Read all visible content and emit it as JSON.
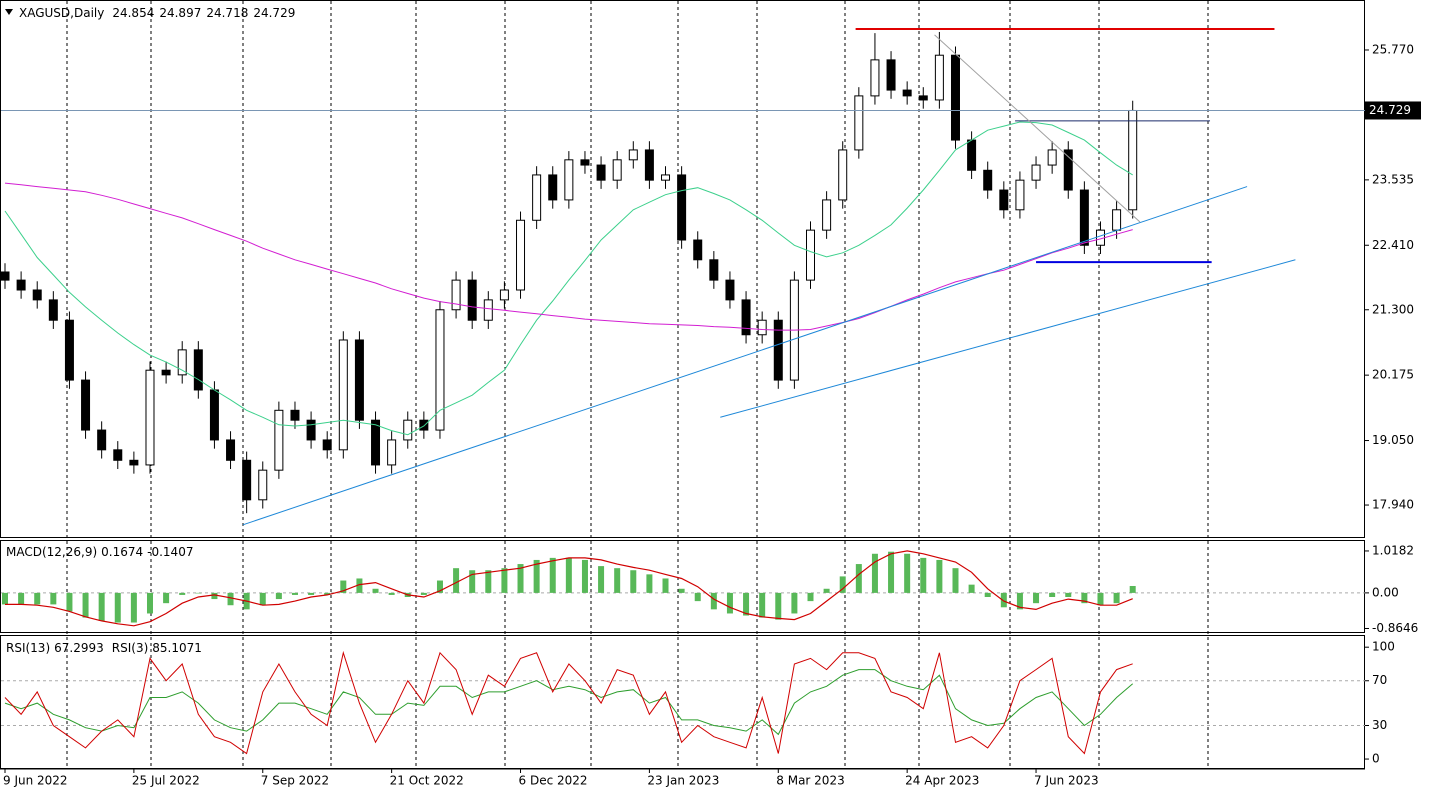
{
  "chart_data": [
    {
      "type": "candlestick",
      "title": "XAGUSD,Daily",
      "header_values": [
        24.854,
        24.897,
        24.718,
        24.729
      ],
      "categories": [
        "9 Jun 2022",
        null,
        null,
        null,
        null,
        null,
        null,
        null,
        "25 Jul 2022",
        null,
        null,
        null,
        null,
        null,
        null,
        null,
        "7 Sep 2022",
        null,
        null,
        null,
        null,
        null,
        null,
        null,
        "21 Oct 2022",
        null,
        null,
        null,
        null,
        null,
        null,
        null,
        "6 Dec 2022",
        null,
        null,
        null,
        null,
        null,
        null,
        null,
        "23 Jan 2023",
        null,
        null,
        null,
        null,
        null,
        null,
        null,
        "8 Mar 2023",
        null,
        null,
        null,
        null,
        null,
        null,
        null,
        "24 Apr 2023",
        null,
        null,
        null,
        null,
        null,
        null,
        null,
        "7 Jun 2023",
        null,
        null,
        null,
        null,
        null,
        null
      ],
      "open": [
        21.95,
        21.81,
        21.64,
        21.47,
        21.12,
        20.09,
        19.23,
        18.89,
        18.71,
        18.63,
        20.26,
        20.18,
        20.61,
        19.92,
        19.06,
        18.71,
        18.03,
        18.54,
        19.57,
        19.4,
        19.06,
        18.89,
        20.78,
        19.4,
        18.63,
        19.06,
        19.4,
        19.23,
        21.3,
        21.81,
        21.12,
        21.47,
        21.64,
        22.84,
        23.62,
        23.19,
        23.88,
        23.79,
        23.53,
        23.88,
        24.05,
        23.53,
        23.62,
        22.5,
        22.16,
        21.81,
        21.47,
        20.87,
        21.12,
        20.09,
        21.81,
        22.67,
        23.19,
        24.05,
        24.98,
        25.6,
        25.08,
        24.98,
        24.91,
        25.68,
        24.22,
        23.7,
        23.36,
        23.02,
        23.53,
        23.79,
        24.05,
        23.36,
        22.41,
        22.67,
        23.02
      ],
      "high": [
        22.1,
        21.96,
        21.79,
        21.62,
        21.27,
        20.24,
        19.38,
        19.04,
        18.86,
        20.41,
        20.41,
        20.76,
        20.76,
        20.07,
        19.21,
        18.86,
        18.69,
        19.72,
        19.72,
        19.55,
        19.21,
        20.93,
        20.93,
        19.55,
        19.21,
        19.55,
        19.55,
        21.45,
        21.96,
        21.96,
        21.62,
        21.79,
        22.99,
        23.77,
        23.77,
        24.03,
        24.03,
        23.94,
        24.03,
        24.2,
        24.2,
        23.77,
        23.77,
        22.65,
        22.31,
        21.96,
        21.62,
        21.27,
        21.27,
        21.96,
        22.82,
        23.34,
        24.2,
        25.13,
        26.06,
        25.75,
        25.23,
        25.13,
        26.08,
        25.83,
        24.37,
        23.85,
        23.51,
        23.68,
        23.94,
        24.2,
        24.2,
        23.51,
        22.82,
        23.17,
        24.897
      ],
      "low": [
        21.66,
        21.49,
        21.32,
        20.97,
        19.94,
        19.08,
        18.74,
        18.56,
        18.48,
        18.48,
        20.03,
        20.03,
        19.77,
        18.91,
        18.56,
        17.8,
        17.88,
        18.39,
        19.25,
        18.91,
        18.74,
        18.74,
        19.25,
        18.48,
        18.48,
        18.91,
        19.08,
        19.08,
        21.15,
        20.97,
        20.97,
        21.32,
        21.49,
        22.69,
        23.04,
        23.04,
        23.64,
        23.38,
        23.38,
        23.73,
        23.38,
        23.38,
        22.35,
        22.01,
        21.66,
        21.32,
        20.72,
        20.72,
        19.94,
        19.94,
        21.66,
        22.52,
        23.04,
        23.9,
        24.83,
        24.93,
        24.83,
        24.76,
        24.76,
        24.07,
        23.55,
        23.21,
        22.87,
        22.87,
        23.38,
        23.64,
        23.21,
        22.26,
        22.26,
        22.52,
        22.87
      ],
      "close": [
        21.81,
        21.64,
        21.47,
        21.12,
        20.09,
        19.23,
        18.89,
        18.71,
        18.63,
        20.26,
        20.18,
        20.61,
        19.92,
        19.06,
        18.71,
        18.03,
        18.54,
        19.57,
        19.4,
        19.06,
        18.89,
        20.78,
        19.4,
        18.63,
        19.06,
        19.4,
        19.23,
        21.3,
        21.81,
        21.12,
        21.47,
        21.64,
        22.84,
        23.62,
        23.19,
        23.88,
        23.79,
        23.53,
        23.88,
        24.05,
        23.53,
        23.62,
        22.5,
        22.16,
        21.81,
        21.47,
        20.87,
        21.12,
        20.09,
        21.81,
        22.67,
        23.19,
        24.05,
        24.98,
        25.6,
        25.08,
        24.98,
        24.91,
        25.68,
        24.22,
        23.7,
        23.36,
        23.02,
        23.53,
        23.79,
        24.05,
        23.36,
        22.41,
        22.67,
        23.02,
        24.729
      ],
      "overlays": [
        {
          "color": "#3cd08c",
          "values": [
            23.0,
            22.6,
            22.2,
            21.9,
            21.6,
            21.35,
            21.12,
            20.9,
            20.7,
            20.52,
            20.4,
            20.26,
            20.1,
            19.92,
            19.75,
            19.57,
            19.45,
            19.32,
            19.3,
            19.32,
            19.36,
            19.4,
            19.36,
            19.32,
            19.22,
            19.15,
            19.3,
            19.57,
            19.7,
            19.83,
            20.05,
            20.26,
            20.7,
            21.12,
            21.45,
            21.81,
            22.15,
            22.5,
            22.76,
            23.02,
            23.15,
            23.28,
            23.35,
            23.4,
            23.3,
            23.19,
            23.02,
            22.84,
            22.62,
            22.41,
            22.3,
            22.21,
            22.28,
            22.41,
            22.58,
            22.76,
            23.05,
            23.36,
            23.7,
            24.05,
            24.22,
            24.39,
            24.46,
            24.53,
            24.52,
            24.48,
            24.35,
            24.22,
            24.0,
            23.79,
            23.62
          ]
        },
        {
          "color": "#d21ed2",
          "values": [
            23.48,
            23.45,
            23.42,
            23.39,
            23.36,
            23.33,
            23.27,
            23.2,
            23.12,
            23.04,
            22.96,
            22.88,
            22.78,
            22.68,
            22.58,
            22.48,
            22.36,
            22.26,
            22.16,
            22.08,
            22.0,
            21.92,
            21.84,
            21.76,
            21.66,
            21.58,
            21.5,
            21.44,
            21.4,
            21.35,
            21.32,
            21.29,
            21.26,
            21.23,
            21.2,
            21.17,
            21.14,
            21.12,
            21.1,
            21.08,
            21.06,
            21.05,
            21.04,
            21.03,
            21.01,
            21.0,
            20.98,
            20.96,
            20.95,
            20.95,
            20.96,
            21.02,
            21.08,
            21.15,
            21.25,
            21.36,
            21.47,
            21.57,
            21.68,
            21.78,
            21.85,
            21.92,
            21.98,
            22.08,
            22.18,
            22.28,
            22.36,
            22.45,
            22.52,
            22.6,
            22.68
          ]
        }
      ],
      "lines": [
        {
          "color": "#e00000",
          "width": 2,
          "x": [
            52.8,
            78.8
          ],
          "y": [
            26.13,
            26.13
          ]
        },
        {
          "color": "#1a2a6a",
          "width": 1,
          "x": [
            62.7,
            74.8
          ],
          "y": [
            24.55,
            24.55
          ]
        },
        {
          "color": "#0000e0",
          "width": 2,
          "x": [
            64.0,
            74.9
          ],
          "y": [
            22.12,
            22.12
          ]
        },
        {
          "color": "#1e88d8",
          "width": 1,
          "x": [
            14.77,
            77.1
          ],
          "y": [
            17.6,
            23.42
          ]
        },
        {
          "color": "#1e88d8",
          "width": 1,
          "x": [
            44.4,
            80.1
          ],
          "y": [
            19.45,
            22.16
          ]
        },
        {
          "color": "#a0a0a0",
          "width": 1,
          "x": [
            57.7,
            70.45
          ],
          "y": [
            26.03,
            22.81
          ]
        }
      ],
      "price_line_color": "#7a96b4",
      "ylim": [
        17.39,
        26.63
      ],
      "yticks": [
        {
          "value": 25.77,
          "label": "25.770"
        },
        23.535,
        {
          "value": 22.41,
          "label": "22.410"
        },
        {
          "value": 21.3,
          "label": "21.300"
        },
        20.175,
        {
          "value": 19.05,
          "label": "19.050"
        },
        {
          "value": 17.94,
          "label": "17.940"
        }
      ]
    },
    {
      "type": "macd",
      "title": "MACD(12,26,9)",
      "histogram": {
        "color": "#58b858",
        "values": [
          -0.28,
          -0.28,
          -0.28,
          -0.28,
          -0.45,
          -0.6,
          -0.68,
          -0.72,
          -0.72,
          -0.5,
          -0.25,
          -0.05,
          0.0,
          -0.15,
          -0.3,
          -0.4,
          -0.3,
          -0.15,
          -0.05,
          -0.05,
          -0.05,
          0.3,
          0.35,
          0.1,
          -0.05,
          -0.1,
          -0.05,
          0.3,
          0.6,
          0.55,
          0.55,
          0.6,
          0.7,
          0.8,
          0.85,
          0.85,
          0.8,
          0.65,
          0.6,
          0.55,
          0.45,
          0.35,
          0.1,
          -0.2,
          -0.4,
          -0.5,
          -0.55,
          -0.6,
          -0.65,
          -0.5,
          -0.2,
          0.1,
          0.4,
          0.7,
          0.95,
          1.0,
          0.95,
          0.85,
          0.8,
          0.6,
          0.2,
          -0.1,
          -0.35,
          -0.4,
          -0.25,
          -0.1,
          -0.1,
          -0.25,
          -0.3,
          -0.25,
          0.1674
        ]
      },
      "signal": {
        "color": "#d00000",
        "values": [
          -0.28,
          -0.28,
          -0.3,
          -0.35,
          -0.45,
          -0.58,
          -0.68,
          -0.75,
          -0.8,
          -0.7,
          -0.5,
          -0.25,
          -0.1,
          -0.05,
          -0.12,
          -0.2,
          -0.3,
          -0.28,
          -0.2,
          -0.1,
          -0.05,
          0.05,
          0.2,
          0.25,
          0.1,
          -0.05,
          -0.1,
          0.05,
          0.25,
          0.45,
          0.5,
          0.55,
          0.6,
          0.7,
          0.78,
          0.85,
          0.85,
          0.8,
          0.7,
          0.62,
          0.55,
          0.45,
          0.35,
          0.15,
          -0.15,
          -0.35,
          -0.5,
          -0.58,
          -0.62,
          -0.65,
          -0.5,
          -0.2,
          0.1,
          0.45,
          0.75,
          0.95,
          1.02,
          0.95,
          0.85,
          0.75,
          0.5,
          0.1,
          -0.2,
          -0.35,
          -0.4,
          -0.25,
          -0.15,
          -0.2,
          -0.3,
          -0.3,
          -0.1407
        ]
      },
      "zero_line": true,
      "ylim": [
        -0.95,
        1.26
      ],
      "yticks": [
        1.0182,
        {
          "value": 0,
          "label": "0.00"
        },
        -0.8646
      ]
    },
    {
      "type": "rsi",
      "series": [
        {
          "name": "RSI(13)",
          "color": "#2e9e2e",
          "values": [
            50,
            45,
            50,
            40,
            35,
            28,
            25,
            30,
            28,
            55,
            55,
            60,
            50,
            35,
            28,
            25,
            35,
            50,
            50,
            45,
            40,
            60,
            55,
            40,
            40,
            50,
            48,
            65,
            65,
            55,
            60,
            60,
            65,
            70,
            62,
            65,
            62,
            55,
            60,
            62,
            50,
            55,
            35,
            35,
            30,
            28,
            25,
            35,
            22,
            50,
            60,
            65,
            75,
            80,
            80,
            70,
            65,
            62,
            75,
            45,
            35,
            30,
            32,
            45,
            55,
            60,
            45,
            30,
            40,
            55,
            67.2993
          ]
        },
        {
          "name": "RSI(3)",
          "color": "#d00000",
          "values": [
            55,
            40,
            60,
            30,
            20,
            10,
            25,
            35,
            20,
            90,
            70,
            85,
            40,
            20,
            15,
            5,
            60,
            85,
            60,
            40,
            30,
            95,
            50,
            15,
            40,
            70,
            50,
            95,
            80,
            40,
            75,
            65,
            90,
            95,
            60,
            85,
            70,
            50,
            80,
            75,
            40,
            60,
            15,
            30,
            20,
            15,
            10,
            55,
            5,
            85,
            90,
            80,
            95,
            95,
            90,
            60,
            55,
            45,
            95,
            15,
            20,
            10,
            30,
            70,
            80,
            90,
            20,
            5,
            60,
            80,
            85.1071
          ]
        }
      ],
      "levels": [
        70,
        30
      ],
      "ylim": [
        -8,
        110
      ],
      "yticks": [
        100,
        70,
        30,
        0
      ]
    }
  ]
}
